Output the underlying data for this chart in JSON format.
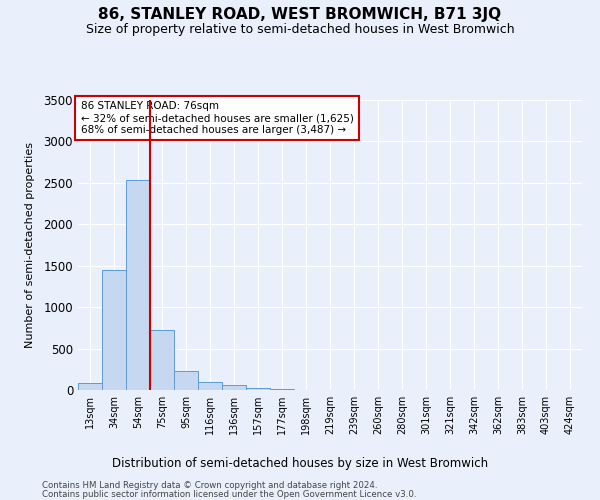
{
  "title": "86, STANLEY ROAD, WEST BROMWICH, B71 3JQ",
  "subtitle": "Size of property relative to semi-detached houses in West Bromwich",
  "xlabel": "Distribution of semi-detached houses by size in West Bromwich",
  "ylabel": "Number of semi-detached properties",
  "footer_line1": "Contains HM Land Registry data © Crown copyright and database right 2024.",
  "footer_line2": "Contains public sector information licensed under the Open Government Licence v3.0.",
  "categories": [
    "13sqm",
    "34sqm",
    "54sqm",
    "75sqm",
    "95sqm",
    "116sqm",
    "136sqm",
    "157sqm",
    "177sqm",
    "198sqm",
    "219sqm",
    "239sqm",
    "260sqm",
    "280sqm",
    "301sqm",
    "321sqm",
    "342sqm",
    "362sqm",
    "383sqm",
    "403sqm",
    "424sqm"
  ],
  "values": [
    90,
    1450,
    2540,
    720,
    225,
    95,
    55,
    30,
    10,
    0,
    0,
    0,
    0,
    0,
    0,
    0,
    0,
    0,
    0,
    0,
    0
  ],
  "bar_color": "#c5d8f0",
  "bar_edge_color": "#5b9bd5",
  "property_label": "86 STANLEY ROAD: 76sqm",
  "pct_smaller": 32,
  "count_smaller": 1625,
  "pct_larger": 68,
  "count_larger": 3487,
  "vline_pos": 2.5,
  "ylim": [
    0,
    3500
  ],
  "yticks": [
    0,
    500,
    1000,
    1500,
    2000,
    2500,
    3000,
    3500
  ],
  "bg_color": "#eaf0fb",
  "grid_color": "#ffffff",
  "annotation_box_color": "#ffffff",
  "annotation_box_edge": "#cc0000",
  "vline_color": "#cc0000",
  "title_fontsize": 11,
  "subtitle_fontsize": 9
}
